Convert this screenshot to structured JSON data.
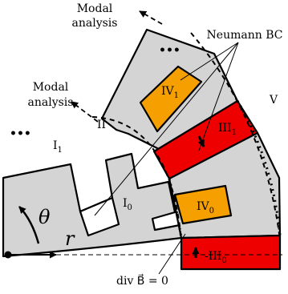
{
  "labels": {
    "modal_top": [
      "Modal",
      "analysis"
    ],
    "modal_mid": [
      "Modal",
      "analysis"
    ],
    "neumann": "Neumann BC",
    "region_V": "V",
    "region_II": "II",
    "region_I1": {
      "base": "I",
      "sub": "1"
    },
    "region_I0": {
      "base": "I",
      "sub": "0"
    },
    "region_IV1": {
      "base": "IV",
      "sub": "1"
    },
    "region_IV0": {
      "base": "IV",
      "sub": "0"
    },
    "region_III1": {
      "base": "III",
      "sub": "1"
    },
    "region_III0": {
      "base": "-III",
      "sub": "0"
    },
    "theta": "θ",
    "r": "r",
    "divergence": "div B⃗ = 0",
    "dots_top": "•••",
    "dots_left": "•••"
  },
  "colors": {
    "iron": "#d4d4d4",
    "coil": "#f5a000",
    "magnet": "#ee0000",
    "line": "#000000"
  }
}
